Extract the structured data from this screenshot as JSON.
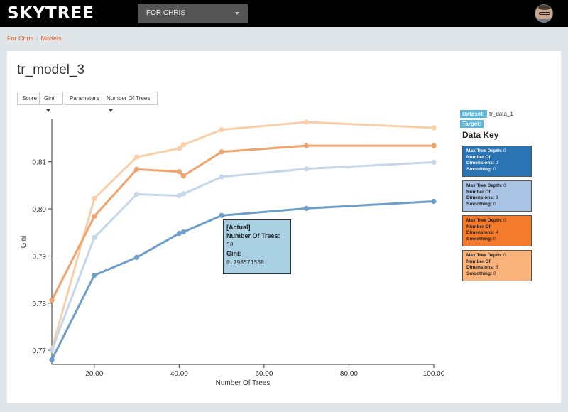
{
  "header": {
    "logo": "SKYTREE",
    "project_select": "FOR CHRIS"
  },
  "breadcrumb": {
    "items": [
      "For Chris",
      "Models"
    ]
  },
  "page_title": "tr_model_3",
  "controls": {
    "score_label": "Score",
    "score_value": "Gini",
    "parameters_label": "Parameters",
    "parameters_value": "Number Of Trees"
  },
  "legend": {
    "dataset_label": "Dataset:",
    "dataset_value": "tr_data_1",
    "target_label": "Target:",
    "title": "Data Key",
    "field_labels": {
      "depth": "Max Tree Depth:",
      "dims_a": "Number Of",
      "dims_b": "Dimensions:",
      "smoothing": "Smoothing:"
    },
    "items": [
      {
        "depth": "0",
        "dims": "2",
        "smoothing": "0",
        "color": "#2b74b3"
      },
      {
        "depth": "0",
        "dims": "3",
        "smoothing": "0",
        "color": "#a9c3e5"
      },
      {
        "depth": "0",
        "dims": "4",
        "smoothing": "0",
        "color": "#f47a2c"
      },
      {
        "depth": "0",
        "dims": "5",
        "smoothing": "0",
        "color": "#f9b27a"
      }
    ]
  },
  "tooltip": {
    "series": "[Actual]",
    "x_label": "Number Of Trees",
    "x_value": "50",
    "y_label": "Gini",
    "y_value": "0.798571538"
  },
  "chart_data": {
    "type": "line",
    "xlabel": "Number Of Trees",
    "ylabel": "Gini",
    "xlim": [
      10,
      100
    ],
    "ylim": [
      0.767,
      0.819
    ],
    "xticks": [
      "20.00",
      "40.00",
      "60.00",
      "80.00",
      "100.00"
    ],
    "yticks": [
      "0.77",
      "0.78",
      "0.79",
      "0.80",
      "0.81"
    ],
    "grid": false,
    "series": [
      {
        "color": "#f9cfaa",
        "x": [
          10,
          20,
          30,
          40,
          41,
          50,
          70,
          100
        ],
        "y": [
          0.7702,
          0.8022,
          0.811,
          0.8128,
          0.8136,
          0.8168,
          0.8184,
          0.8172
        ]
      },
      {
        "color": "#f0a36a",
        "x": [
          10,
          20,
          30,
          40,
          41,
          50,
          70,
          100
        ],
        "y": [
          0.7806,
          0.7984,
          0.8084,
          0.8079,
          0.807,
          0.8121,
          0.8134,
          0.8134
        ]
      },
      {
        "color": "#c6d6ea",
        "x": [
          10,
          20,
          30,
          40,
          41,
          50,
          70,
          100
        ],
        "y": [
          0.77,
          0.7939,
          0.8031,
          0.8028,
          0.8032,
          0.8068,
          0.8085,
          0.8099
        ]
      },
      {
        "color": "#6c9ec9",
        "x": [
          10,
          20,
          30,
          40,
          41,
          50,
          70,
          100
        ],
        "y": [
          0.768,
          0.7859,
          0.7897,
          0.7948,
          0.7951,
          0.7986,
          0.8001,
          0.8016
        ]
      }
    ]
  }
}
